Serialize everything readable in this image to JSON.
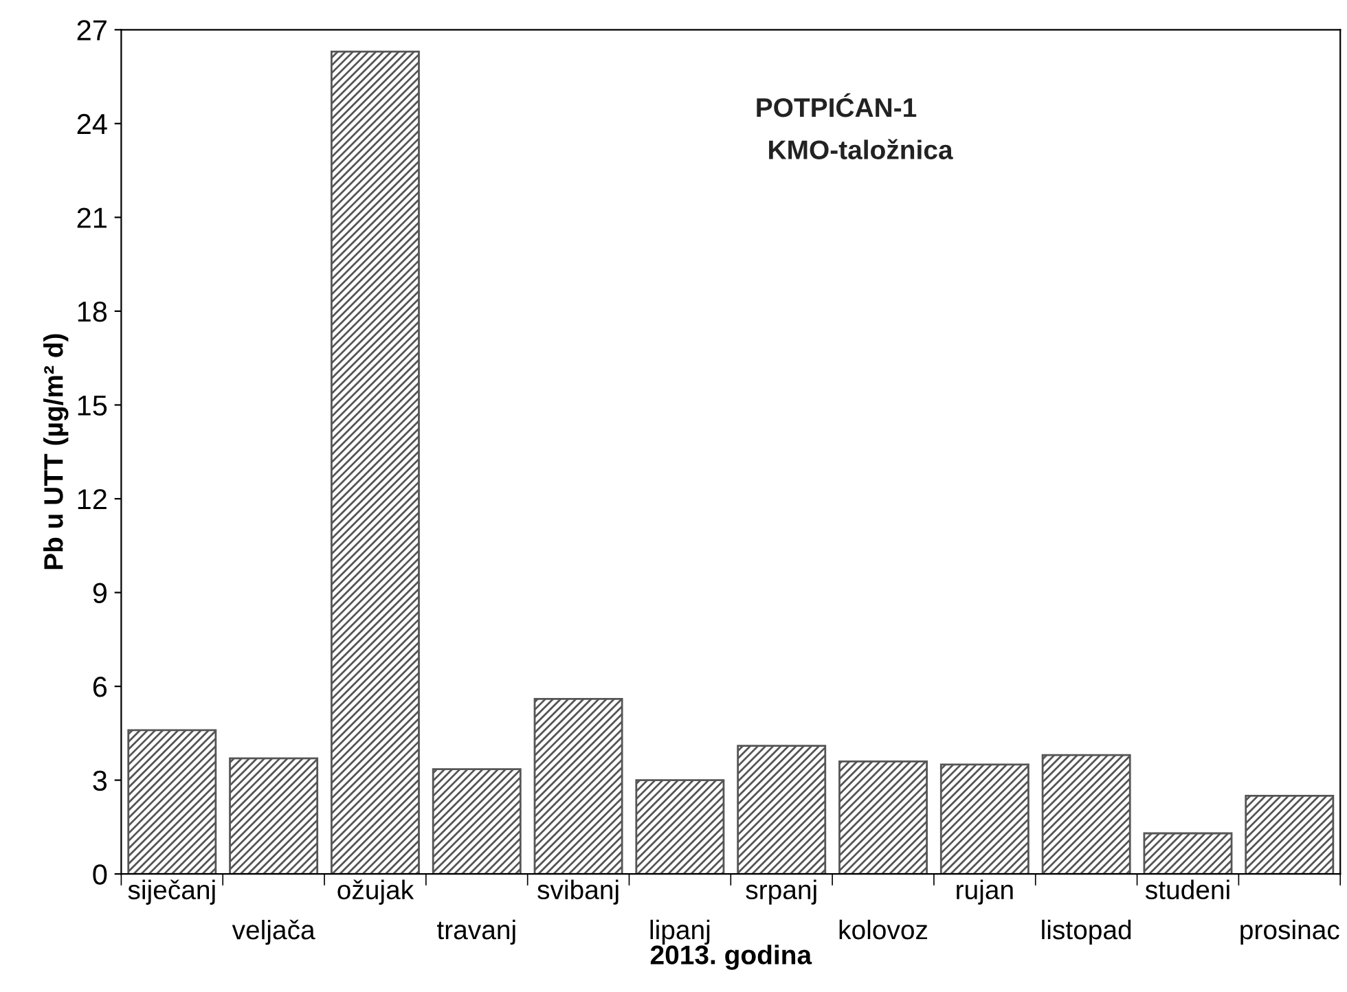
{
  "chart_data": {
    "type": "bar",
    "xlabel": "2013. godina",
    "ylabel": "Pb u UTT (µg/m² d)",
    "annotations": [
      "POTPIĆAN-1",
      "KMO-taložnica"
    ],
    "categories": [
      "siječanj",
      "veljača",
      "ožujak",
      "travanj",
      "svibanj",
      "lipanj",
      "srpanj",
      "kolovoz",
      "rujan",
      "listopad",
      "studeni",
      "prosinac"
    ],
    "values": [
      4.6,
      3.7,
      26.3,
      3.35,
      5.6,
      3.0,
      4.1,
      3.6,
      3.5,
      3.8,
      1.3,
      2.5
    ],
    "color": "#555555",
    "ylim": [
      0,
      27
    ],
    "yticks": [
      0,
      3,
      6,
      9,
      12,
      15,
      18,
      21,
      24,
      27
    ],
    "grid": false
  }
}
